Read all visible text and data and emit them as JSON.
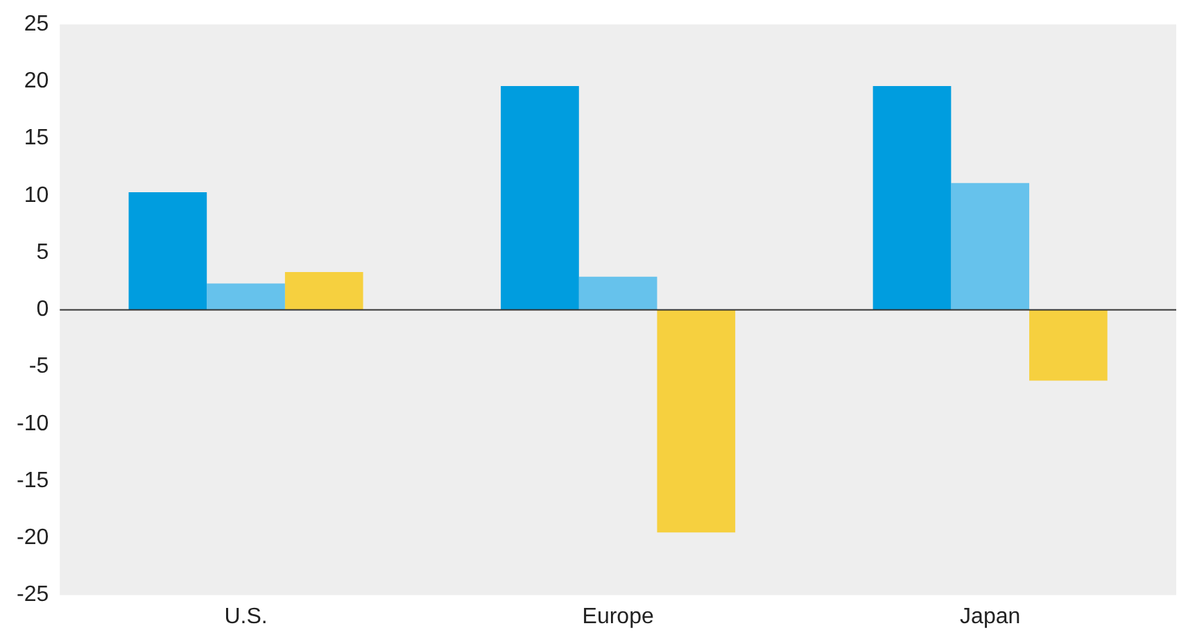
{
  "chart_data": {
    "type": "bar",
    "categories": [
      "U.S.",
      "Europe",
      "Japan"
    ],
    "series": [
      {
        "color": "#009ddf",
        "values": [
          10.3,
          19.6,
          19.6
        ]
      },
      {
        "color": "#66c2ec",
        "values": [
          2.3,
          2.9,
          11.1
        ]
      },
      {
        "color": "#f6d03f",
        "values": [
          3.3,
          -19.5,
          -6.2
        ]
      }
    ],
    "ylim": [
      -25,
      25
    ],
    "yticks": [
      -25,
      -20,
      -15,
      -10,
      -5,
      0,
      5,
      10,
      15,
      20,
      25
    ],
    "legend": false
  }
}
